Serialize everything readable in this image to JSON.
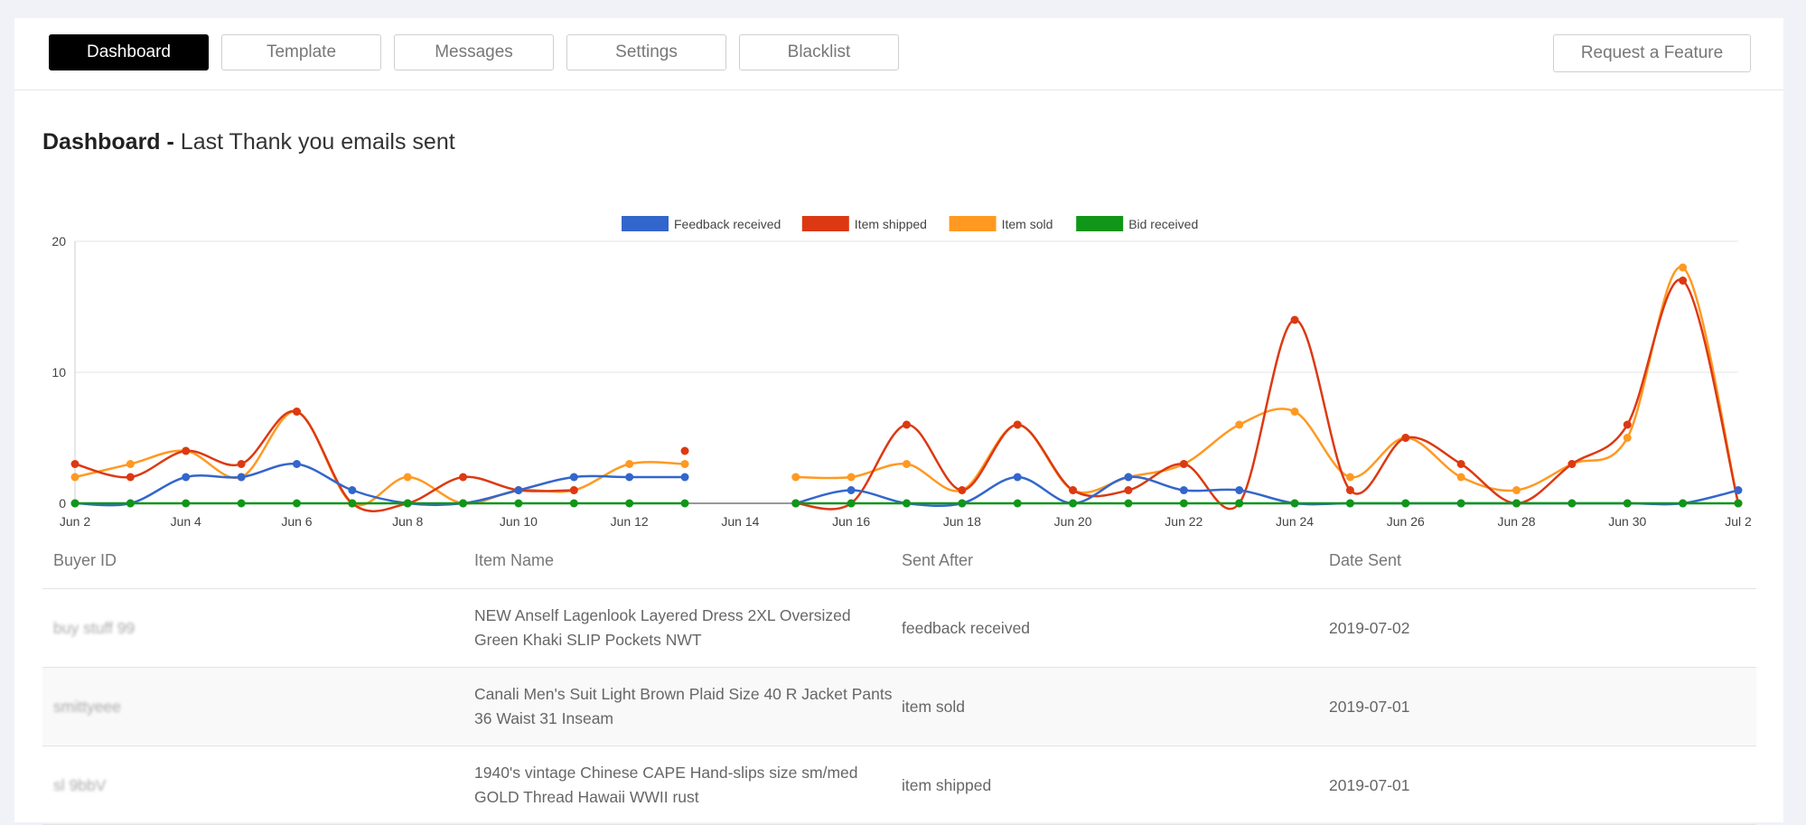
{
  "nav": {
    "tabs": [
      {
        "label": "Dashboard",
        "active": true
      },
      {
        "label": "Template",
        "active": false
      },
      {
        "label": "Messages",
        "active": false
      },
      {
        "label": "Settings",
        "active": false
      },
      {
        "label": "Blacklist",
        "active": false
      }
    ],
    "feature_button": "Request a Feature"
  },
  "page": {
    "title_bold": "Dashboard -",
    "title_rest": " Last Thank you emails sent"
  },
  "chart_data": {
    "type": "line",
    "categories": [
      "Jun 2",
      "Jun 3",
      "Jun 4",
      "Jun 5",
      "Jun 6",
      "Jun 7",
      "Jun 8",
      "Jun 9",
      "Jun 10",
      "Jun 11",
      "Jun 12",
      "Jun 13",
      "Jun 14",
      "Jun 15",
      "Jun 16",
      "Jun 17",
      "Jun 18",
      "Jun 19",
      "Jun 20",
      "Jun 21",
      "Jun 22",
      "Jun 23",
      "Jun 24",
      "Jun 25",
      "Jun 26",
      "Jun 27",
      "Jun 28",
      "Jun 29",
      "Jun 30",
      "Jul 1",
      "Jul 2"
    ],
    "tick_labels": [
      "Jun 2",
      "Jun 4",
      "Jun 6",
      "Jun 8",
      "Jun 10",
      "Jun 12",
      "Jun 14",
      "Jun 16",
      "Jun 18",
      "Jun 20",
      "Jun 22",
      "Jun 24",
      "Jun 26",
      "Jun 28",
      "Jun 30",
      "Jul 2"
    ],
    "y_ticks": [
      0,
      10,
      20
    ],
    "ylim": [
      0,
      20
    ],
    "legend_position": "top-center",
    "series": [
      {
        "name": "Feedback received",
        "color": "#3366cc",
        "values": [
          0,
          0,
          2,
          2,
          3,
          1,
          0,
          0,
          1,
          2,
          2,
          2,
          null,
          0,
          1,
          0,
          0,
          2,
          0,
          2,
          1,
          1,
          0,
          0,
          0,
          0,
          0,
          0,
          0,
          0,
          1
        ]
      },
      {
        "name": "Item shipped",
        "color": "#dc3912",
        "values": [
          3,
          2,
          4,
          3,
          7,
          0,
          0,
          2,
          1,
          1,
          null,
          4,
          null,
          0,
          0,
          6,
          1,
          6,
          1,
          1,
          3,
          0,
          14,
          1,
          5,
          3,
          0,
          3,
          6,
          17,
          0
        ]
      },
      {
        "name": "Item sold",
        "color": "#ff9922",
        "values": [
          2,
          3,
          4,
          2,
          7,
          0,
          2,
          0,
          1,
          1,
          3,
          3,
          null,
          2,
          2,
          3,
          1,
          6,
          1,
          2,
          3,
          6,
          7,
          2,
          5,
          2,
          1,
          3,
          5,
          18,
          0
        ]
      },
      {
        "name": "Bid received",
        "color": "#109618",
        "values": [
          0,
          0,
          0,
          0,
          0,
          0,
          0,
          0,
          0,
          0,
          0,
          0,
          null,
          0,
          0,
          0,
          0,
          0,
          0,
          0,
          0,
          0,
          0,
          0,
          0,
          0,
          0,
          0,
          0,
          0,
          0
        ]
      }
    ],
    "grid": true
  },
  "table": {
    "headers": [
      "Buyer ID",
      "Item Name",
      "Sent After",
      "Date Sent"
    ],
    "rows": [
      {
        "buyer": "buy stuff 99",
        "item": "NEW Anself Lagenlook Layered Dress 2XL Oversized Green Khaki SLIP Pockets NWT",
        "sent_after": "feedback received",
        "date": "2019-07-02"
      },
      {
        "buyer": "smittyeee",
        "item": "Canali Men's Suit Light Brown Plaid Size 40 R Jacket Pants 36 Waist 31 Inseam",
        "sent_after": "item sold",
        "date": "2019-07-01"
      },
      {
        "buyer": "sl 9bbV",
        "item": "1940's vintage Chinese CAPE Hand-slips size sm/med GOLD Thread Hawaii WWII rust",
        "sent_after": "item shipped",
        "date": "2019-07-01"
      }
    ]
  }
}
